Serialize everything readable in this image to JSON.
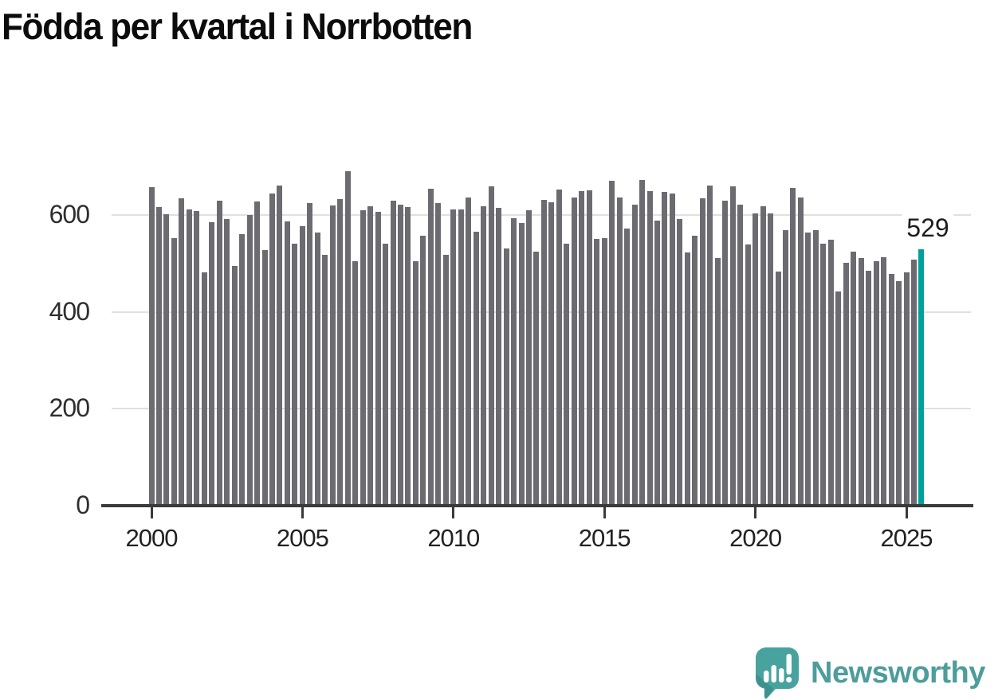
{
  "title": "Födda per kvartal i Norrbotten",
  "annotation": {
    "label": "529"
  },
  "branding": {
    "wordmark": "Newsworthy",
    "icon": "newsworthy-bubble-chart-icon",
    "color": "#4d9d9a",
    "icon_color": "#48a29e"
  },
  "colors": {
    "bar": "#6c6b71",
    "highlight": "#00a19b",
    "gridline": "#e0e0e0",
    "axis": "#3a3a3a",
    "tick_text": "#222222"
  },
  "chart_data": {
    "type": "bar",
    "title": "Födda per kvartal i Norrbotten",
    "xlabel": "",
    "ylabel": "",
    "ylim": [
      0,
      730
    ],
    "yticks": [
      0,
      200,
      400,
      600
    ],
    "xticks": [
      "2000",
      "2005",
      "2010",
      "2015",
      "2020",
      "2025"
    ],
    "grid": true,
    "legend": "none",
    "highlight_index": 102,
    "highlight_value_label": "529",
    "categories": [
      "2000 Q1",
      "2000 Q2",
      "2000 Q3",
      "2000 Q4",
      "2001 Q1",
      "2001 Q2",
      "2001 Q3",
      "2001 Q4",
      "2002 Q1",
      "2002 Q2",
      "2002 Q3",
      "2002 Q4",
      "2003 Q1",
      "2003 Q2",
      "2003 Q3",
      "2003 Q4",
      "2004 Q1",
      "2004 Q2",
      "2004 Q3",
      "2004 Q4",
      "2005 Q1",
      "2005 Q2",
      "2005 Q3",
      "2005 Q4",
      "2006 Q1",
      "2006 Q2",
      "2006 Q3",
      "2006 Q4",
      "2007 Q1",
      "2007 Q2",
      "2007 Q3",
      "2007 Q4",
      "2008 Q1",
      "2008 Q2",
      "2008 Q3",
      "2008 Q4",
      "2009 Q1",
      "2009 Q2",
      "2009 Q3",
      "2009 Q4",
      "2010 Q1",
      "2010 Q2",
      "2010 Q3",
      "2010 Q4",
      "2011 Q1",
      "2011 Q2",
      "2011 Q3",
      "2011 Q4",
      "2012 Q1",
      "2012 Q2",
      "2012 Q3",
      "2012 Q4",
      "2013 Q1",
      "2013 Q2",
      "2013 Q3",
      "2013 Q4",
      "2014 Q1",
      "2014 Q2",
      "2014 Q3",
      "2014 Q4",
      "2015 Q1",
      "2015 Q2",
      "2015 Q3",
      "2015 Q4",
      "2016 Q1",
      "2016 Q2",
      "2016 Q3",
      "2016 Q4",
      "2017 Q1",
      "2017 Q2",
      "2017 Q3",
      "2017 Q4",
      "2018 Q1",
      "2018 Q2",
      "2018 Q3",
      "2018 Q4",
      "2019 Q1",
      "2019 Q2",
      "2019 Q3",
      "2019 Q4",
      "2020 Q1",
      "2020 Q2",
      "2020 Q3",
      "2020 Q4",
      "2021 Q1",
      "2021 Q2",
      "2021 Q3",
      "2021 Q4",
      "2022 Q1",
      "2022 Q2",
      "2022 Q3",
      "2022 Q4",
      "2023 Q1",
      "2023 Q2",
      "2023 Q3",
      "2023 Q4",
      "2024 Q1",
      "2024 Q2",
      "2024 Q3",
      "2024 Q4",
      "2025 Q1",
      "2025 Q2",
      "2025 Q3"
    ],
    "values": [
      657,
      616,
      601,
      552,
      635,
      611,
      608,
      482,
      585,
      630,
      592,
      495,
      561,
      600,
      628,
      528,
      644,
      661,
      587,
      541,
      577,
      625,
      564,
      518,
      620,
      633,
      690,
      505,
      610,
      618,
      607,
      541,
      630,
      621,
      616,
      505,
      557,
      654,
      625,
      518,
      611,
      611,
      636,
      566,
      618,
      659,
      615,
      531,
      594,
      584,
      610,
      524,
      631,
      626,
      653,
      541,
      636,
      649,
      651,
      551,
      552,
      671,
      636,
      572,
      621,
      672,
      649,
      589,
      648,
      644,
      592,
      523,
      557,
      635,
      661,
      511,
      630,
      659,
      621,
      539,
      603,
      618,
      603,
      483,
      569,
      656,
      636,
      564,
      569,
      541,
      549,
      442,
      501,
      524,
      511,
      485,
      505,
      513,
      478,
      464,
      482,
      508,
      529
    ]
  }
}
